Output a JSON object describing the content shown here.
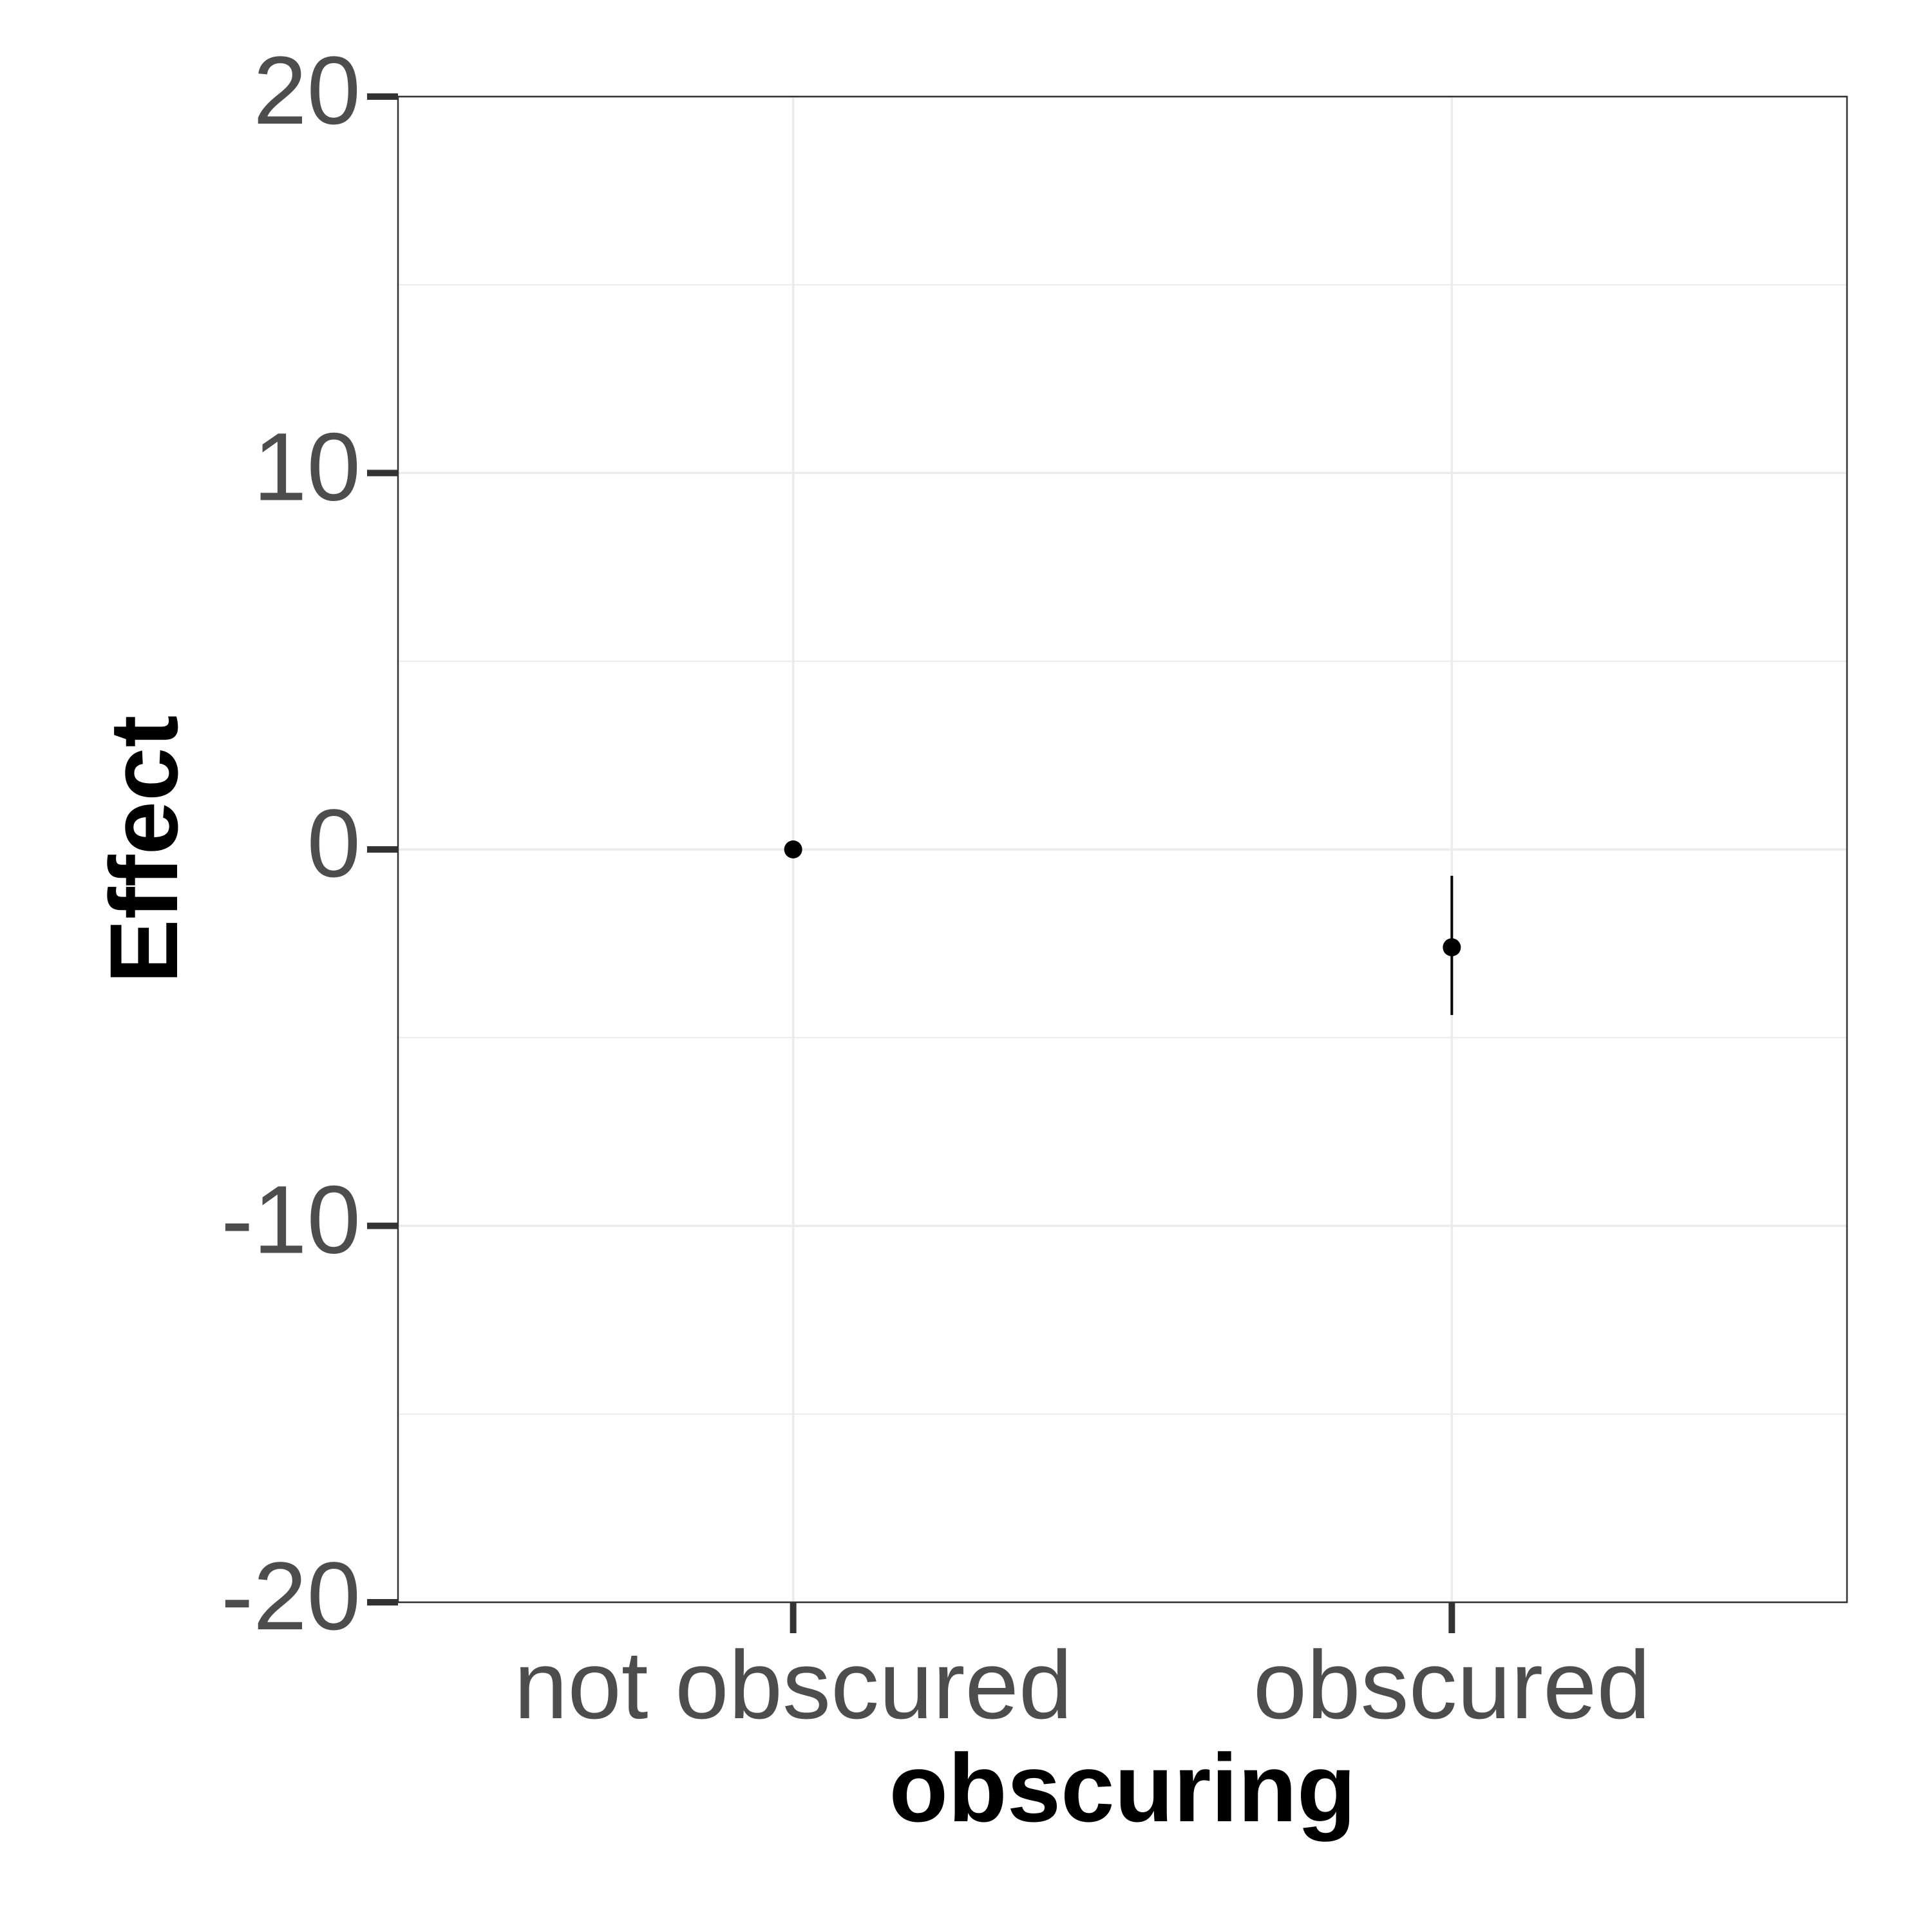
{
  "chart_data": {
    "type": "scatter",
    "xlabel": "obscuring",
    "ylabel": "Effect",
    "categories": [
      "not obscured",
      "obscured"
    ],
    "ylim": [
      -20,
      20
    ],
    "yticks": [
      -20,
      -10,
      0,
      10,
      20
    ],
    "ytick_labels": [
      "-20",
      "-10",
      "0",
      "10",
      "20"
    ],
    "grid": true,
    "series": [
      {
        "points": [
          {
            "x": "not obscured",
            "y": 0,
            "ymin": 0,
            "ymax": 0
          },
          {
            "x": "obscured",
            "y": -2.6,
            "ymin": -4.4,
            "ymax": -0.7
          }
        ]
      }
    ],
    "colors": {
      "points": "#000000",
      "grid": "#ebebeb",
      "panel_border": "#333333",
      "tick_text": "#4d4d4d"
    }
  }
}
